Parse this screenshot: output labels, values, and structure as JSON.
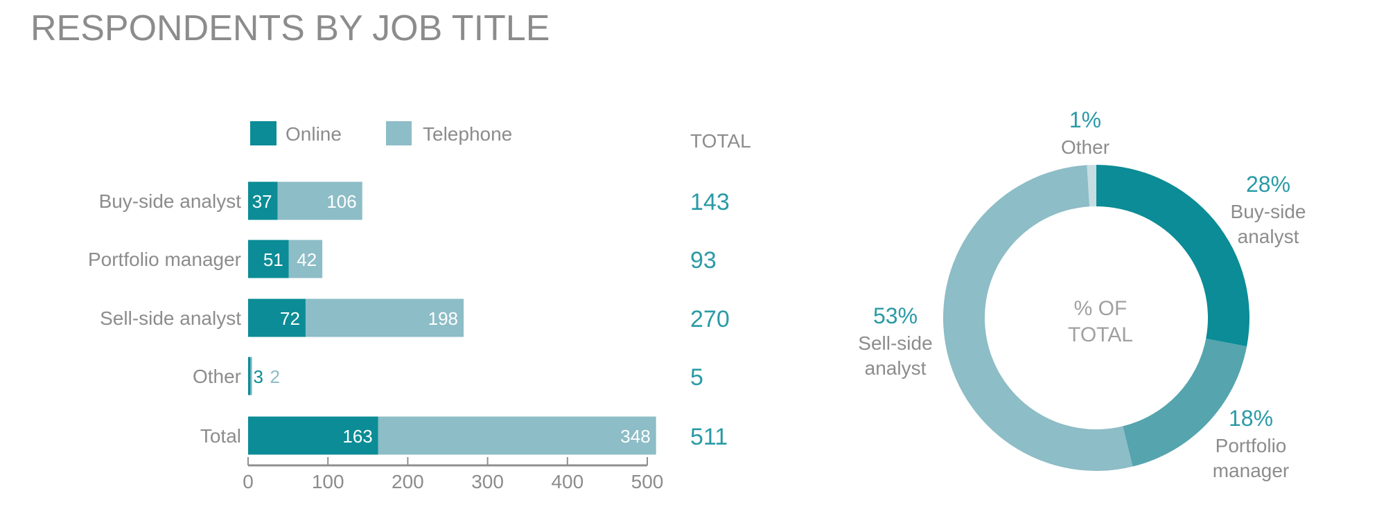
{
  "title": "RESPONDENTS BY JOB TITLE",
  "colors": {
    "online": "#0b8c96",
    "telephone": "#8dbdc6",
    "portfolio": "#55a4ae",
    "other": "#c6dde2",
    "text": "#8c8c8c",
    "accent": "#2a9aa6"
  },
  "chart_data": [
    {
      "type": "bar",
      "orientation": "horizontal",
      "stacked": true,
      "legend": {
        "position": "top",
        "entries": [
          "Online",
          "Telephone"
        ]
      },
      "total_header": "TOTAL",
      "categories": [
        "Buy-side analyst",
        "Portfolio manager",
        "Sell-side analyst",
        "Other",
        "Total"
      ],
      "series": [
        {
          "name": "Online",
          "values": [
            37,
            51,
            72,
            3,
            163
          ]
        },
        {
          "name": "Telephone",
          "values": [
            106,
            42,
            198,
            2,
            348
          ]
        }
      ],
      "totals": [
        143,
        93,
        270,
        5,
        511
      ],
      "xlim": [
        0,
        500
      ],
      "xticks": [
        0,
        100,
        200,
        300,
        400,
        500
      ]
    },
    {
      "type": "pie",
      "donut": true,
      "center_label": [
        "% OF",
        "TOTAL"
      ],
      "slices": [
        {
          "label": [
            "Buy-side",
            "analyst"
          ],
          "value": 143,
          "pct_label": "28%"
        },
        {
          "label": [
            "Portfolio",
            "manager"
          ],
          "value": 93,
          "pct_label": "18%"
        },
        {
          "label": [
            "Sell-side",
            "analyst"
          ],
          "value": 270,
          "pct_label": "53%"
        },
        {
          "label": [
            "Other"
          ],
          "value": 5,
          "pct_label": "1%"
        }
      ]
    }
  ]
}
